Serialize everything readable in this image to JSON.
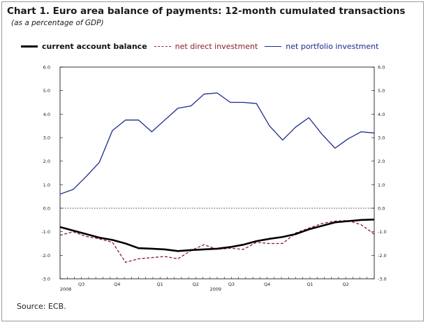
{
  "title": "Chart 1. Euro area balance of payments: 12-month cumulated transactions",
  "subtitle": "(as a percentage of GDP)",
  "source": "Source: ECB.",
  "legend": {
    "current_account": "current account balance",
    "net_direct": "net direct investment",
    "net_portfolio": "net portfolio investment"
  },
  "colors": {
    "current_account": "#000000",
    "net_direct": "#8b1a2b",
    "net_portfolio": "#1b2a8c"
  },
  "chart_data": {
    "type": "line",
    "title": "Chart 1. Euro area balance of payments: 12-month cumulated transactions",
    "subtitle": "(as a percentage of GDP)",
    "xlabel": "",
    "ylabel": "",
    "ylim": [
      -3.0,
      6.0
    ],
    "y_ticks": [
      -3.0,
      -2.0,
      -1.0,
      0.0,
      1.0,
      2.0,
      3.0,
      4.0,
      5.0,
      6.0
    ],
    "y_tick_labels": [
      "-3.0",
      "-2.0",
      "-1.0",
      "0.0",
      "1.0",
      "2.0",
      "3.0",
      "4.0",
      "5.0",
      "6.0"
    ],
    "right_axis_duplicate": true,
    "months": 24,
    "x_quarter_labels": [
      "Q3",
      "Q4",
      "Q1",
      "Q2",
      "Q3",
      "Q4",
      "Q1",
      "Q2"
    ],
    "x_quarter_positions": [
      3,
      8,
      14,
      19,
      24,
      29,
      35,
      40
    ],
    "x_year_labels": [
      "2008",
      "2009"
    ],
    "x_year_positions": [
      0,
      21
    ],
    "zero_line": "dotted",
    "grid": false,
    "legend_position": "top",
    "series": [
      {
        "name": "current account balance",
        "style": "solid-thick",
        "values": [
          -0.8,
          -0.95,
          -1.1,
          -1.25,
          -1.35,
          -1.5,
          -1.7,
          -1.72,
          -1.75,
          -1.82,
          -1.78,
          -1.75,
          -1.72,
          -1.65,
          -1.55,
          -1.4,
          -1.3,
          -1.22,
          -1.1,
          -0.9,
          -0.75,
          -0.6,
          -0.55,
          -0.5,
          -0.48
        ]
      },
      {
        "name": "net direct investment",
        "style": "dashed",
        "values": [
          -1.15,
          -1.0,
          -1.2,
          -1.3,
          -1.45,
          -2.3,
          -2.15,
          -2.1,
          -2.05,
          -2.15,
          -1.8,
          -1.55,
          -1.75,
          -1.7,
          -1.75,
          -1.45,
          -1.5,
          -1.5,
          -1.05,
          -0.85,
          -0.65,
          -0.55,
          -0.52,
          -0.7,
          -1.1
        ]
      },
      {
        "name": "net portfolio investment",
        "style": "solid",
        "values": [
          0.6,
          0.8,
          1.35,
          1.95,
          3.3,
          3.75,
          3.75,
          3.25,
          3.75,
          4.25,
          4.35,
          4.85,
          4.9,
          4.5,
          4.5,
          4.45,
          3.5,
          2.9,
          3.45,
          3.85,
          3.15,
          2.55,
          2.95,
          3.25,
          3.2
        ]
      }
    ]
  }
}
